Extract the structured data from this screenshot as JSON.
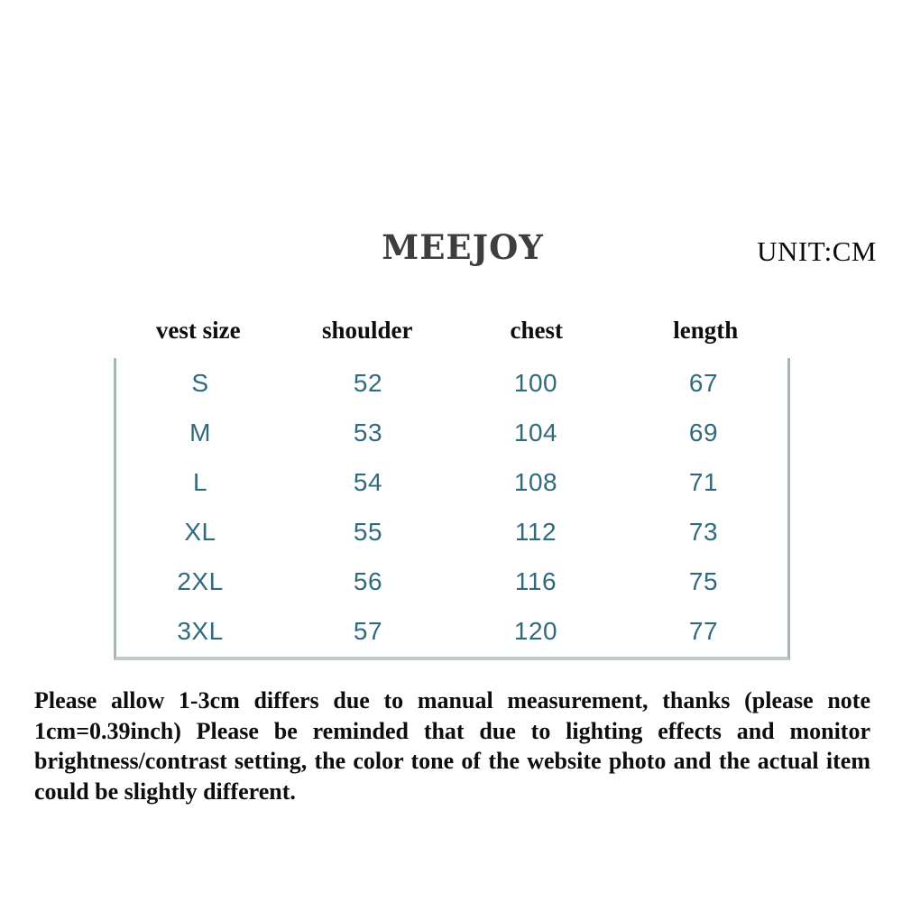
{
  "header": {
    "brand": "MEEJOY",
    "unit": "UNIT:CM"
  },
  "size_table": {
    "columns": [
      "vest size",
      "shoulder",
      "chest",
      "length"
    ],
    "rows": [
      [
        "S",
        "52",
        "100",
        "67"
      ],
      [
        "M",
        "53",
        "104",
        "69"
      ],
      [
        "L",
        "54",
        "108",
        "71"
      ],
      [
        "XL",
        "55",
        "112",
        "73"
      ],
      [
        "2XL",
        "56",
        "116",
        "75"
      ],
      [
        "3XL",
        "57",
        "120",
        "77"
      ]
    ]
  },
  "footer_note": "Please allow 1-3cm differs due to manual measurement, thanks (please note 1cm=0.39inch) Please be reminded that due to lighting effects and monitor brightness/contrast setting, the color tone of the website photo and the actual item could be slightly different.",
  "colors": {
    "accent_teal": "#2f6b7d",
    "side_border": "#a7b5b5",
    "bottom_border": "#c2caca",
    "title_gray": "#3e3e3e"
  },
  "chart_data": {
    "type": "table",
    "title": "MEEJOY",
    "unit": "CM",
    "columns": [
      "vest size",
      "shoulder",
      "chest",
      "length"
    ],
    "rows": [
      [
        "S",
        52,
        100,
        67
      ],
      [
        "M",
        53,
        104,
        69
      ],
      [
        "L",
        54,
        108,
        71
      ],
      [
        "XL",
        55,
        112,
        73
      ],
      [
        "2XL",
        56,
        116,
        75
      ],
      [
        "3XL",
        57,
        120,
        77
      ]
    ],
    "notes": "Size chart for a vest; measurements in centimeters; disclaimer about 1-3cm manual measurement tolerance and color tone differences."
  }
}
